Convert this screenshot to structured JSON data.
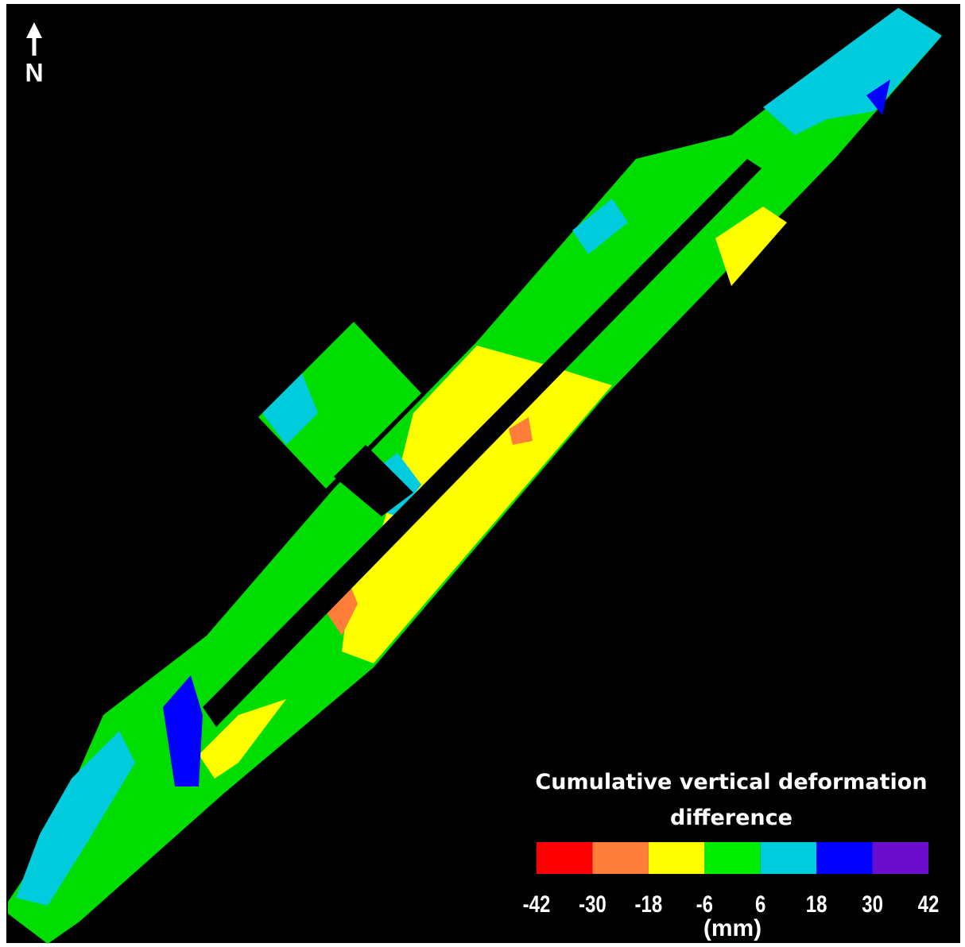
{
  "north_label": "N",
  "legend": {
    "title": "Cumulative vertical deformation difference",
    "ticks": [
      -42,
      -30,
      -18,
      -6,
      6,
      18,
      30,
      42
    ],
    "colors": [
      "#ff0000",
      "#ff7f3a",
      "#ffff00",
      "#00ee00",
      "#00ccdd",
      "#0000ff",
      "#6a0dcc"
    ],
    "unit": "(mm)"
  }
}
